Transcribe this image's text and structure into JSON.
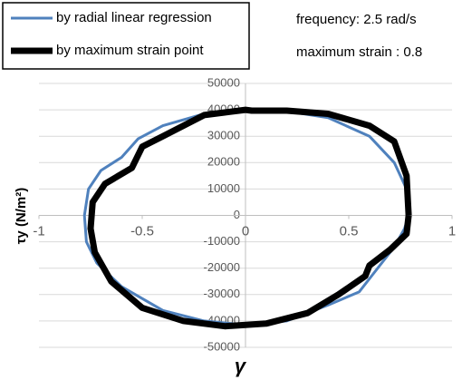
{
  "chart_data": {
    "type": "line",
    "xlabel": "γ",
    "ylabel": "τy (N/m²)",
    "annotations": [
      "frequency: 2.5 rad/s",
      "maximum strain : 0.8"
    ],
    "xlim": [
      -1,
      1
    ],
    "xticks": [
      -1,
      -0.5,
      0,
      0.5,
      1
    ],
    "ylim": [
      -50000,
      50000
    ],
    "yticks": [
      -50000,
      -40000,
      -30000,
      -20000,
      -10000,
      0,
      10000,
      20000,
      30000,
      40000,
      50000
    ],
    "grid": true,
    "series": [
      {
        "name": "by radial linear regression",
        "color": "#4f81bd",
        "width": 3,
        "x": [
          0.79,
          0.78,
          0.72,
          0.6,
          0.4,
          0.2,
          0,
          -0.2,
          -0.4,
          -0.52,
          -0.6,
          -0.7,
          -0.76,
          -0.78,
          -0.77,
          -0.72,
          -0.6,
          -0.4,
          -0.2,
          0,
          0.2,
          0.4,
          0.55,
          0.62,
          0.72,
          0.77,
          0.79
        ],
        "values": [
          0,
          10000,
          20000,
          30000,
          37000,
          39500,
          40000,
          38500,
          34000,
          29000,
          22000,
          17000,
          10000,
          0,
          -10000,
          -18000,
          -27000,
          -36000,
          -40000,
          -41500,
          -40000,
          -34000,
          -29000,
          -22000,
          -12000,
          -5000,
          0
        ]
      },
      {
        "name": "by maximum strain point",
        "color": "#000000",
        "width": 7,
        "x": [
          0.79,
          0.78,
          0.72,
          0.6,
          0.4,
          0.2,
          0.03,
          0,
          -0.2,
          -0.4,
          -0.5,
          -0.55,
          -0.68,
          -0.74,
          -0.75,
          -0.73,
          -0.65,
          -0.5,
          -0.3,
          -0.1,
          0.1,
          0.3,
          0.45,
          0.58,
          0.6,
          0.7,
          0.78,
          0.79
        ],
        "values": [
          0,
          15000,
          28000,
          34000,
          38500,
          39700,
          39700,
          40000,
          38000,
          30000,
          26000,
          18000,
          12000,
          5000,
          -5000,
          -14000,
          -25000,
          -35000,
          -40000,
          -42000,
          -41000,
          -37000,
          -30000,
          -23000,
          -19000,
          -13000,
          -7000,
          0
        ]
      }
    ]
  }
}
